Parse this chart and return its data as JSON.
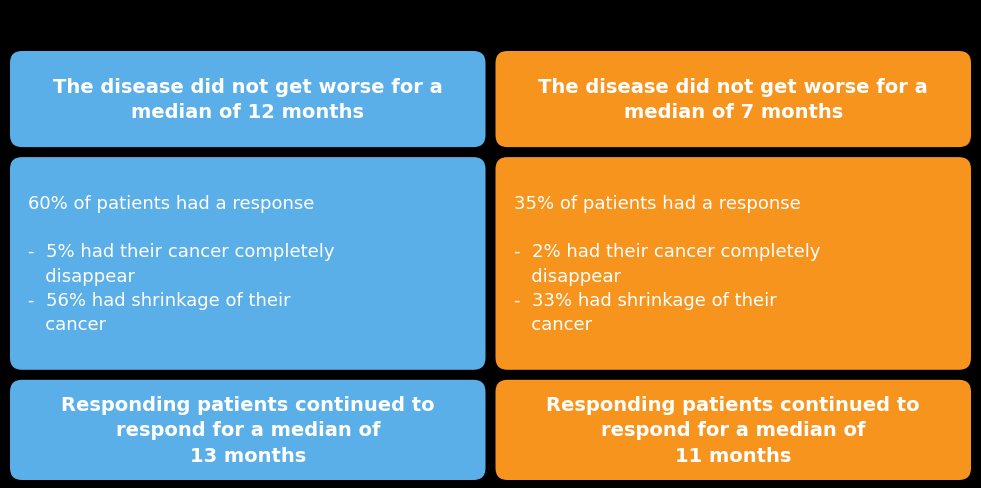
{
  "background_color": "#000000",
  "blue_color": "#5BAFE8",
  "orange_color": "#F7941D",
  "text_color": "#ffffff",
  "boxes": [
    {
      "col": 0,
      "row": 0,
      "color": "#5BAFE8",
      "text": "The disease did not get worse for a\nmedian of 12 months",
      "fontsize": 14,
      "bold": true,
      "align": "center"
    },
    {
      "col": 1,
      "row": 0,
      "color": "#F7941D",
      "text": "The disease did not get worse for a\nmedian of 7 months",
      "fontsize": 14,
      "bold": true,
      "align": "center"
    },
    {
      "col": 0,
      "row": 1,
      "color": "#5BAFE8",
      "text": "60% of patients had a response\n\n-  5% had their cancer completely\n   disappear\n-  56% had shrinkage of their\n   cancer",
      "fontsize": 13,
      "bold": false,
      "align": "left"
    },
    {
      "col": 1,
      "row": 1,
      "color": "#F7941D",
      "text": "35% of patients had a response\n\n-  2% had their cancer completely\n   disappear\n-  33% had shrinkage of their\n   cancer",
      "fontsize": 13,
      "bold": false,
      "align": "left"
    },
    {
      "col": 0,
      "row": 2,
      "color": "#5BAFE8",
      "text": "Responding patients continued to\nrespond for a median of\n13 months",
      "fontsize": 14,
      "bold": true,
      "align": "center"
    },
    {
      "col": 1,
      "row": 2,
      "color": "#F7941D",
      "text": "Responding patients continued to\nrespond for a median of\n11 months",
      "fontsize": 14,
      "bold": true,
      "align": "center"
    }
  ]
}
